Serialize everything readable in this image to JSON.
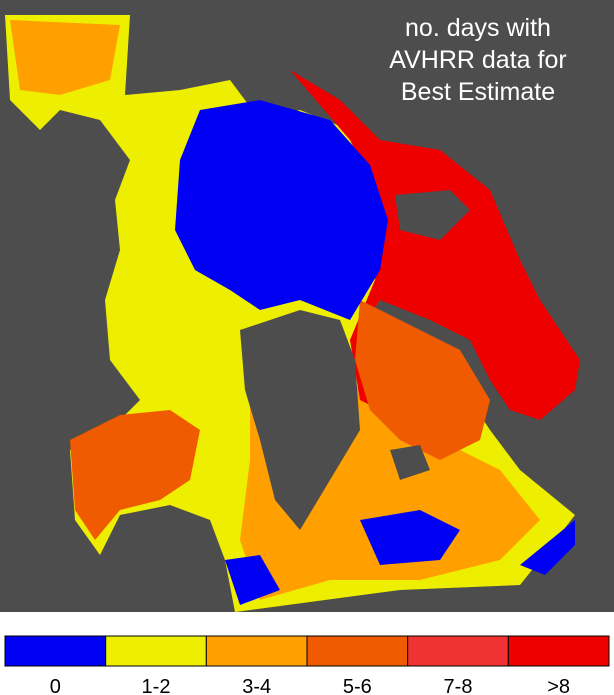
{
  "title": [
    "no. days with",
    "AVHRR data for",
    "Best Estimate"
  ],
  "legend": [
    {
      "label": "0",
      "color": "#0000f5"
    },
    {
      "label": "1-2",
      "color": "#eeee00"
    },
    {
      "label": "3-4",
      "color": "#ffa000"
    },
    {
      "label": "5-6",
      "color": "#f05a00"
    },
    {
      "label": "7-8",
      "color": "#f03232"
    },
    {
      "label": ">8",
      "color": "#ee0000"
    }
  ]
}
